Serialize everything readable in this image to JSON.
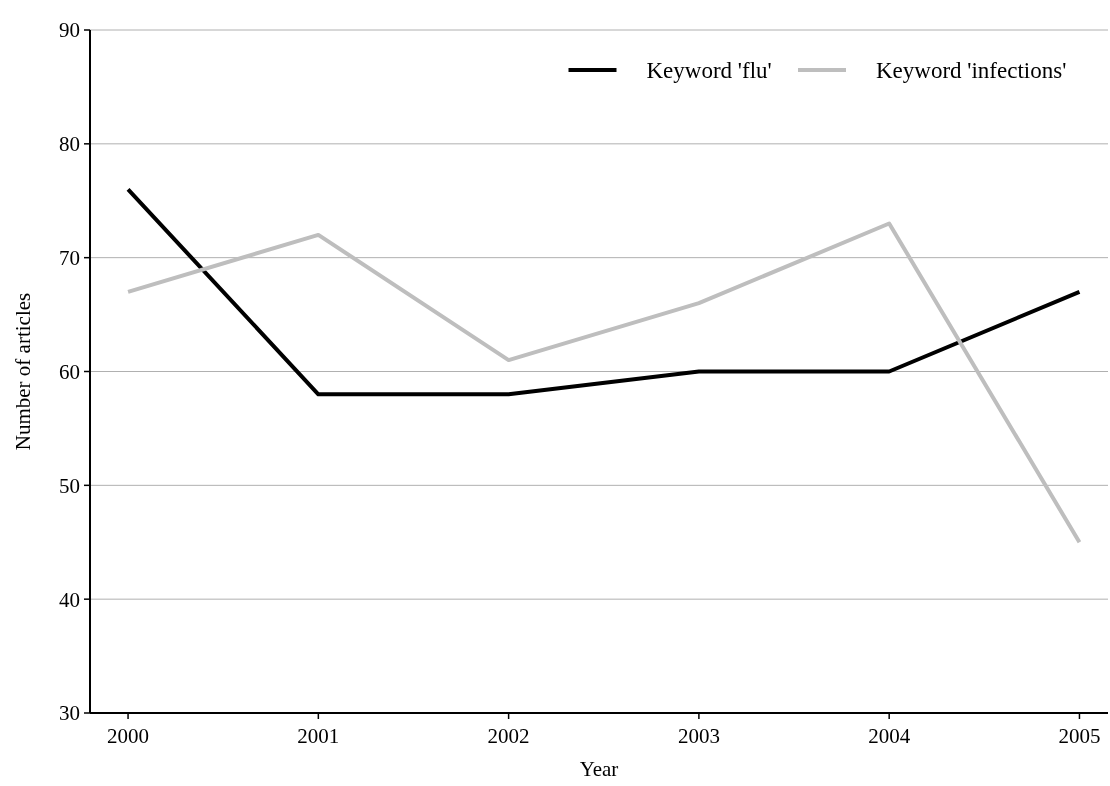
{
  "chart_data": {
    "type": "line",
    "xlabel": "Year",
    "ylabel": "Number of articles",
    "x": [
      2000,
      2001,
      2002,
      2003,
      2004,
      2005
    ],
    "series": [
      {
        "name": "Keyword 'flu'",
        "color": "#000000",
        "values": [
          76,
          58,
          58,
          60,
          60,
          67
        ]
      },
      {
        "name": "Keyword 'infections'",
        "color": "#bebebe",
        "values": [
          67,
          72,
          61,
          66,
          73,
          45
        ]
      }
    ],
    "xlim": [
      1999.8,
      2005.15
    ],
    "xticks": [
      2000,
      2001,
      2002,
      2003,
      2004,
      2005
    ],
    "ylim": [
      30,
      90
    ],
    "yticks": [
      30,
      40,
      50,
      60,
      70,
      80,
      90
    ],
    "grid": "y",
    "legend": "top right",
    "marker": "none",
    "line_style": "solid"
  }
}
